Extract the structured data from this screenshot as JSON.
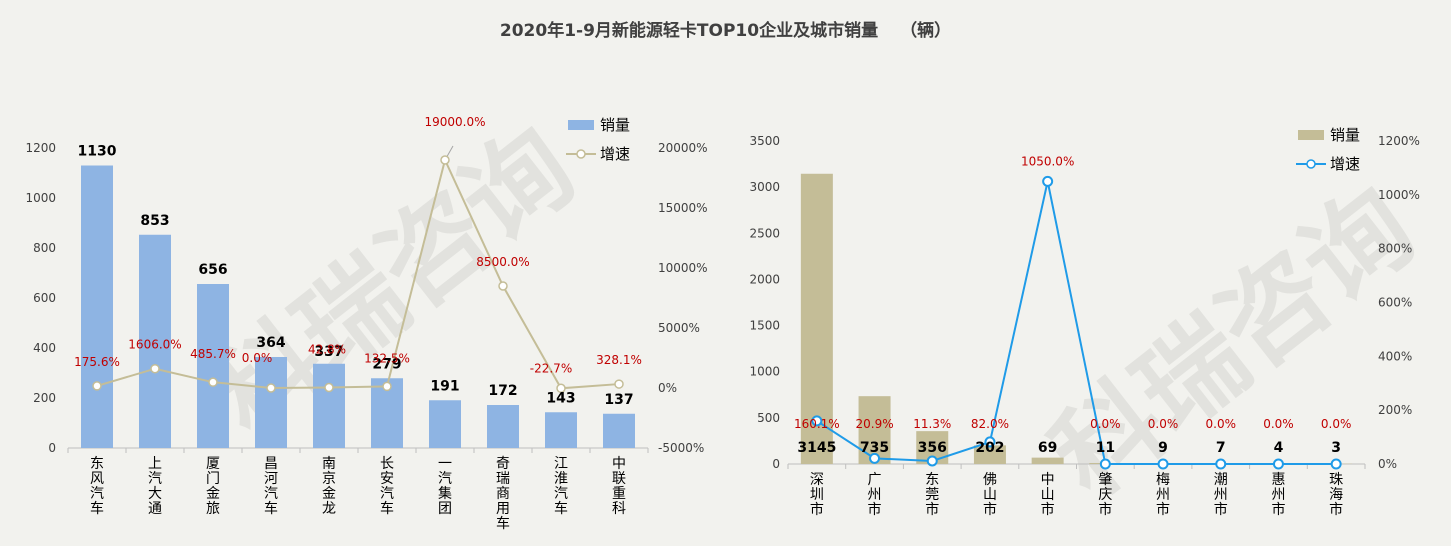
{
  "title": "2020年1-9月新能源轻卡TOP10企业及城市销量",
  "title_unit": "（辆）",
  "watermark_text": "科瑞咨询",
  "colors": {
    "bar_left": "#8eb4e3",
    "line_left": "#c4bd97",
    "bar_right": "#c4bd97",
    "line_right": "#1f9be8",
    "growth_label": "#c00000",
    "axis_text": "#404040"
  },
  "chart_data": [
    {
      "type": "bar",
      "categories": [
        "东风汽车",
        "上汽大通",
        "厦门金旅",
        "昌河汽车",
        "南京金龙",
        "长安汽车",
        "一汽集团",
        "奇瑞商用车",
        "江淮汽车",
        "中联重科"
      ],
      "series": [
        {
          "name": "销量",
          "type": "bar",
          "axis": "left",
          "values": [
            1130,
            853,
            656,
            364,
            337,
            279,
            191,
            172,
            143,
            137
          ]
        },
        {
          "name": "增速",
          "type": "line",
          "axis": "right",
          "values": [
            175.6,
            1606.0,
            485.7,
            0.0,
            42.8,
            132.5,
            19000.0,
            8500.0,
            -22.7,
            328.1
          ],
          "labels": [
            "175.6%",
            "1606.0%",
            "485.7%",
            "0.0%",
            "42.8%",
            "132.5%",
            "19000.0%",
            "8500.0%",
            "-22.7%",
            "328.1%"
          ]
        }
      ],
      "yticks": [
        "0",
        "200",
        "400",
        "600",
        "800",
        "1000",
        "1200"
      ],
      "ylim": [
        0,
        1200
      ],
      "y2ticks": [
        "-5000%",
        "0%",
        "5000%",
        "10000%",
        "15000%",
        "20000%"
      ],
      "y2lim": [
        -5000,
        20000
      ],
      "legend": [
        "销量",
        "增速"
      ],
      "legend_position": "top-right"
    },
    {
      "type": "bar",
      "categories": [
        "深圳市",
        "广州市",
        "东莞市",
        "佛山市",
        "中山市",
        "肇庆市",
        "梅州市",
        "潮州市",
        "惠州市",
        "珠海市"
      ],
      "series": [
        {
          "name": "销量",
          "type": "bar",
          "axis": "left",
          "values": [
            3145,
            735,
            356,
            202,
            69,
            11,
            9,
            7,
            4,
            3
          ]
        },
        {
          "name": "增速",
          "type": "line",
          "axis": "right",
          "values": [
            160.1,
            20.9,
            11.3,
            82.0,
            1050.0,
            0.0,
            0.0,
            0.0,
            0.0,
            0.0
          ],
          "labels": [
            "160.1%",
            "20.9%",
            "11.3%",
            "82.0%",
            "1050.0%",
            "0.0%",
            "0.0%",
            "0.0%",
            "0.0%",
            "0.0%"
          ]
        }
      ],
      "yticks": [
        "0",
        "500",
        "1000",
        "1500",
        "2000",
        "2500",
        "3000",
        "3500"
      ],
      "ylim": [
        0,
        3500
      ],
      "y2ticks": [
        "0%",
        "200%",
        "400%",
        "600%",
        "800%",
        "1000%",
        "1200%"
      ],
      "y2lim": [
        0,
        1200
      ],
      "legend": [
        "销量",
        "增速"
      ],
      "legend_position": "top-right"
    }
  ]
}
